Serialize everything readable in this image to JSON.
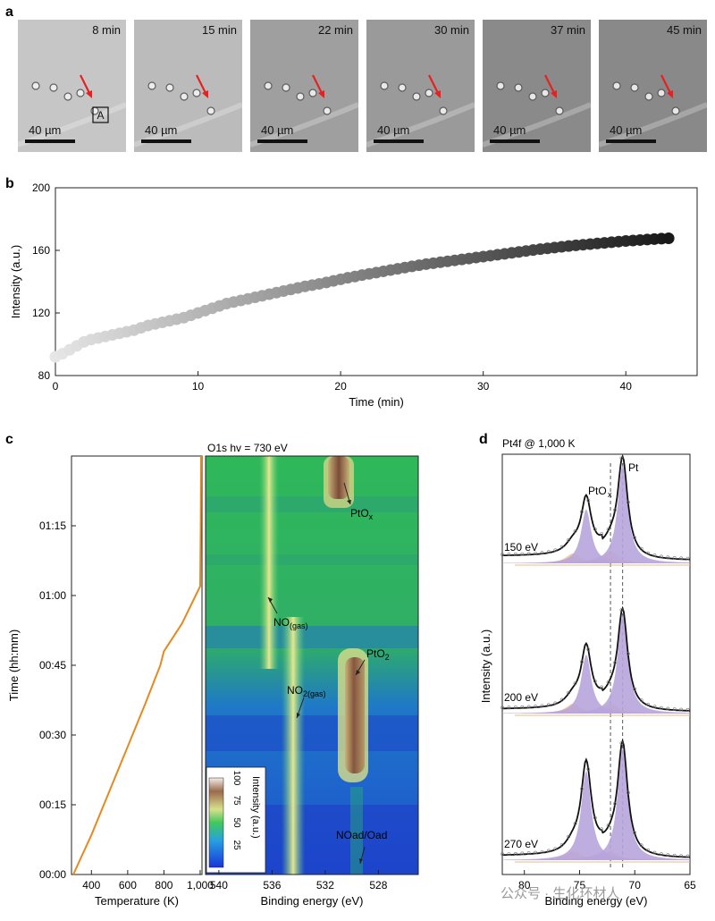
{
  "panel_a": {
    "label": "a",
    "frames": [
      {
        "time": "8 min",
        "scale": "40 µm",
        "tag": "A",
        "shade": "#c6c6c6"
      },
      {
        "time": "15 min",
        "scale": "40 µm",
        "shade": "#bbbbbb"
      },
      {
        "time": "22 min",
        "scale": "40 µm",
        "shade": "#9f9f9f"
      },
      {
        "time": "30 min",
        "scale": "40 µm",
        "shade": "#9a9a9a"
      },
      {
        "time": "37 min",
        "scale": "40 µm",
        "shade": "#8a8a8a"
      },
      {
        "time": "45 min",
        "scale": "40 µm",
        "shade": "#898989"
      }
    ],
    "arrow_color": "#e8201f"
  },
  "chart_data": [
    {
      "panel": "b",
      "type": "scatter",
      "xlabel": "Time (min)",
      "ylabel": "Intensity (a.u.)",
      "xlim": [
        0,
        45
      ],
      "ylim": [
        80,
        200
      ],
      "xticks": [
        0,
        10,
        20,
        30,
        40
      ],
      "yticks": [
        80,
        120,
        160,
        200
      ],
      "x": [
        0,
        0.5,
        1,
        1.5,
        2,
        2.5,
        3,
        3.5,
        4,
        4.5,
        5,
        5.5,
        6,
        6.5,
        7,
        7.5,
        8,
        8.5,
        9,
        9.5,
        10,
        10.5,
        11,
        11.5,
        12,
        12.5,
        13,
        13.5,
        14,
        14.5,
        15,
        15.5,
        16,
        16.5,
        17,
        17.5,
        18,
        18.5,
        19,
        19.5,
        20,
        20.5,
        21,
        21.5,
        22,
        22.5,
        23,
        23.5,
        24,
        24.5,
        25,
        25.5,
        26,
        26.5,
        27,
        27.5,
        28,
        28.5,
        29,
        29.5,
        30,
        30.5,
        31,
        31.5,
        32,
        32.5,
        33,
        33.5,
        34,
        34.5,
        35,
        35.5,
        36,
        36.5,
        37,
        37.5,
        38,
        38.5,
        39,
        39.5,
        40,
        40.5,
        41,
        41.5,
        42,
        42.5,
        43
      ],
      "y": [
        92,
        94,
        96.5,
        99,
        101.5,
        103,
        104,
        105,
        106,
        107,
        108,
        109,
        110.5,
        112,
        113,
        114,
        115,
        116,
        117,
        118.5,
        120,
        121.5,
        123,
        124.5,
        126,
        127,
        128,
        129,
        130,
        131,
        132,
        133,
        134,
        135,
        136,
        137,
        137.8,
        138.6,
        139.5,
        140.5,
        141.5,
        142.5,
        143.3,
        144.2,
        145,
        145.8,
        146.6,
        147.4,
        148.2,
        149,
        149.8,
        150.5,
        151.2,
        151.8,
        152.4,
        153,
        153.6,
        154.2,
        154.8,
        155.4,
        156,
        156.6,
        157.2,
        157.8,
        158.4,
        159,
        159.6,
        160.2,
        160.8,
        161.3,
        161.8,
        162.3,
        162.8,
        163.2,
        163.6,
        164,
        164.4,
        164.8,
        165.2,
        165.6,
        166,
        166.3,
        166.6,
        166.9,
        167.2,
        167.5,
        167.7
      ]
    },
    {
      "panel": "c-left",
      "type": "line",
      "xlabel": "Temperature (K)",
      "ylabel": "Time (hh:mm)",
      "xlim": [
        290,
        1010
      ],
      "ylim": [
        0,
        90
      ],
      "xticks": [
        400,
        600,
        800,
        1000
      ],
      "xticklabels": [
        "400",
        "600",
        "800",
        "1,000"
      ],
      "yticks": [
        0,
        15,
        30,
        45,
        60,
        75
      ],
      "yticklabels": [
        "00:00",
        "00:15",
        "00:30",
        "00:45",
        "01:00",
        "01:15"
      ],
      "x": [
        300,
        400,
        500,
        600,
        700,
        780,
        800,
        900,
        1000,
        1003,
        1005
      ],
      "y": [
        0,
        8.5,
        18,
        27.5,
        37,
        45,
        48,
        54,
        62,
        75,
        90
      ],
      "color": "#e58a1f"
    },
    {
      "panel": "c-right",
      "type": "heatmap",
      "title": "O1s hv = 730 eV",
      "xlabel": "Binding energy (eV)",
      "xlim": [
        541,
        525
      ],
      "xticks": [
        540,
        536,
        532,
        528
      ],
      "colorbar": {
        "label": "Intensity (a.u.)",
        "ticks": [
          25,
          50,
          75,
          100
        ]
      },
      "annotations": [
        {
          "text": "PtOx"
        },
        {
          "text": "NO(gas)"
        },
        {
          "text": "PtO2"
        },
        {
          "text": "NO2(gas)"
        },
        {
          "text": "NOad/Oad"
        }
      ]
    },
    {
      "panel": "d",
      "type": "line",
      "title": "Pt4f @ 1,000 K",
      "xlabel": "Binding energy (eV)",
      "ylabel": "Intensity (a.u.)",
      "xlim": [
        82,
        65
      ],
      "xticks": [
        80,
        75,
        70,
        65
      ],
      "peak_labels": [
        "PtOx",
        "Pt"
      ],
      "series": [
        {
          "name": "150 eV",
          "peaks": [
            {
              "center": 74.4,
              "height": 0.55
            },
            {
              "center": 71.1,
              "height": 1.0
            }
          ],
          "oxide": [
            {
              "center": 75.6,
              "height": 0.1
            },
            {
              "center": 72.2,
              "height": 0.12
            }
          ]
        },
        {
          "name": "200 eV",
          "peaks": [
            {
              "center": 74.4,
              "height": 0.6
            },
            {
              "center": 71.1,
              "height": 1.0
            }
          ],
          "oxide": [
            {
              "center": 75.6,
              "height": 0.1
            },
            {
              "center": 72.2,
              "height": 0.1
            }
          ]
        },
        {
          "name": "270 eV",
          "peaks": [
            {
              "center": 74.4,
              "height": 0.8
            },
            {
              "center": 71.1,
              "height": 1.0
            }
          ],
          "oxide": [
            {
              "center": 75.6,
              "height": 0.08
            },
            {
              "center": 72.2,
              "height": 0.08
            }
          ]
        }
      ],
      "dashed_lines": [
        72.2,
        71.1
      ]
    }
  ],
  "labels": {
    "b": "b",
    "c": "c",
    "d": "d",
    "heatmap_title": "O1s hv = 730 eV",
    "d_title": "Pt4f @ 1,000 K",
    "watermark": "公众号 · 生化环材人"
  }
}
